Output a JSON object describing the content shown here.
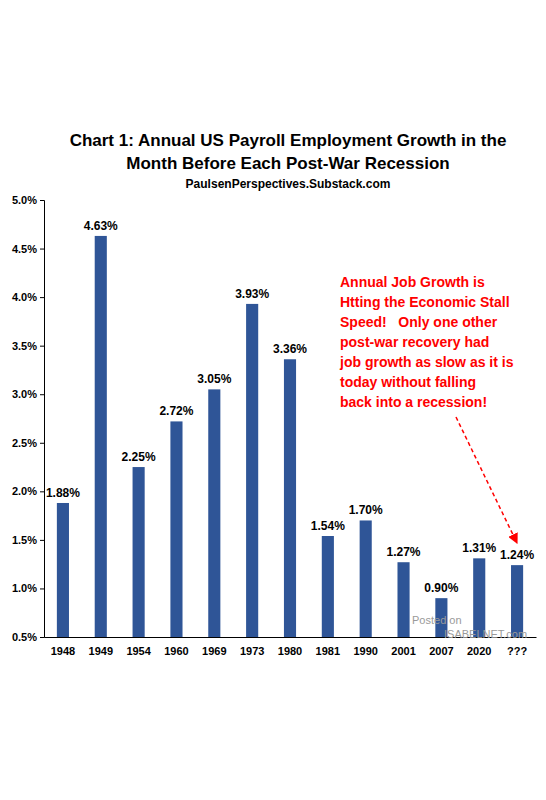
{
  "chart_data": {
    "type": "bar",
    "title": [
      "Chart 1: Annual US Payroll Employment Growth in the",
      "Month Before Each Post-War Recession"
    ],
    "subtitle": "PaulsenPerspectives.Substack.com",
    "categories": [
      "1948",
      "1949",
      "1954",
      "1960",
      "1969",
      "1973",
      "1980",
      "1981",
      "1990",
      "2001",
      "2007",
      "2020",
      "???"
    ],
    "values": [
      1.88,
      4.63,
      2.25,
      2.72,
      3.05,
      3.93,
      3.36,
      1.54,
      1.7,
      1.27,
      0.9,
      1.31,
      1.24
    ],
    "value_labels": [
      "1.88%",
      "4.63%",
      "2.25%",
      "2.72%",
      "3.05%",
      "3.93%",
      "3.36%",
      "1.54%",
      "1.70%",
      "1.27%",
      "0.90%",
      "1.31%",
      "1.24%"
    ],
    "color": "#2f5597",
    "ylim": [
      0.5,
      5.0
    ],
    "yticks": [
      {
        "value": 0.5,
        "label": "0.5%"
      },
      {
        "value": 1.0,
        "label": "1.0%"
      },
      {
        "value": 1.5,
        "label": "1.5%"
      },
      {
        "value": 2.0,
        "label": "2.0%"
      },
      {
        "value": 2.5,
        "label": "2.5%"
      },
      {
        "value": 3.0,
        "label": "3.0%"
      },
      {
        "value": 3.5,
        "label": "3.5%"
      },
      {
        "value": 4.0,
        "label": "4.0%"
      },
      {
        "value": 4.5,
        "label": "4.5%"
      },
      {
        "value": 5.0,
        "label": "5.0%"
      }
    ],
    "grid": false,
    "data_labels": true,
    "annotation": [
      "Annual Job Growth is",
      "Htting the Economic Stall",
      "Speed!   Only one other",
      "post-war recovery had",
      "job growth as slow as it is",
      "today without falling",
      "back into a recession!"
    ],
    "watermark": [
      "Posted on",
      "ISABELNET.com"
    ]
  }
}
